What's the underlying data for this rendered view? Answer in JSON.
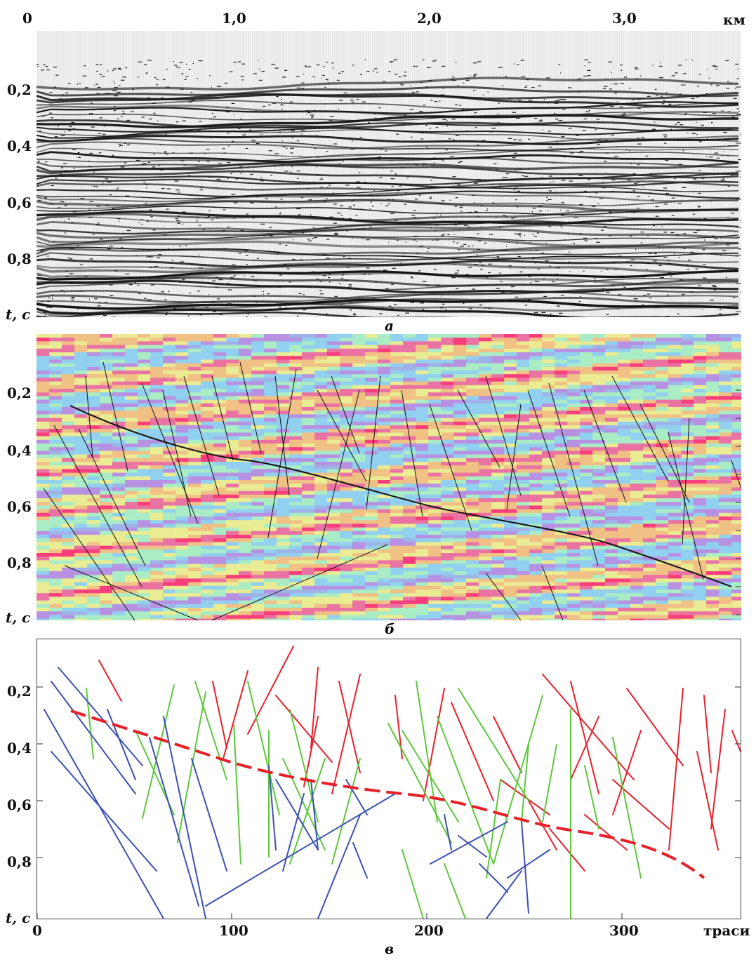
{
  "figure": {
    "top_axis": {
      "ticks": [
        "0",
        "1,0",
        "2,0",
        "3,0"
      ],
      "unit": "км"
    },
    "panel_a": {
      "caption": "а",
      "y_ticks": [
        "0,2",
        "0,4",
        "0,6",
        "0,8"
      ],
      "y_label": "t, с"
    },
    "panel_b": {
      "caption": "б",
      "y_ticks": [
        "0,2",
        "0,4",
        "0,6",
        "0,8"
      ],
      "y_label": "t, с"
    },
    "panel_c": {
      "caption": "в",
      "y_ticks": [
        "0,2",
        "0,4",
        "0,6",
        "0,8"
      ],
      "y_label": "t, с",
      "x_ticks": [
        "0",
        "100",
        "200",
        "300"
      ],
      "x_label": "траси"
    }
  },
  "colors": {
    "red": "#e8202a",
    "green": "#5cc83a",
    "blue": "#3c50b4",
    "black": "#111111"
  }
}
